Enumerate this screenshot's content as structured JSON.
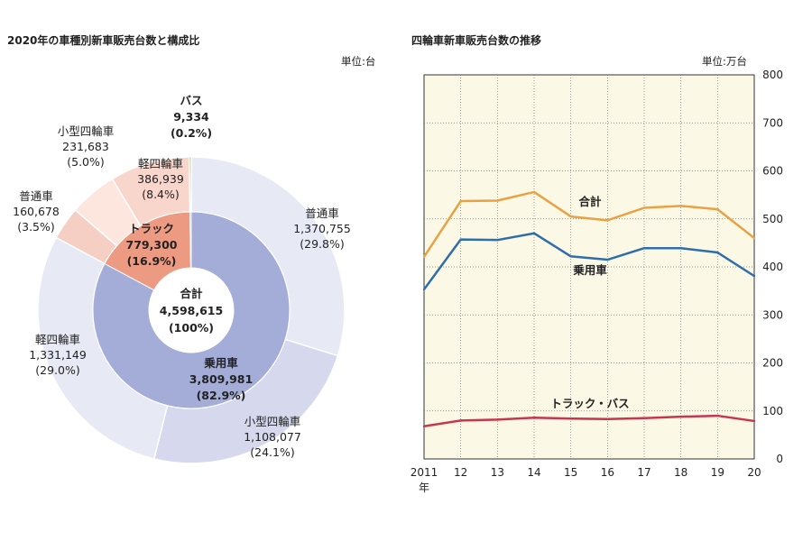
{
  "chart_data": [
    {
      "type": "pie",
      "title": "2020年の車種別新車販売台数と構成比",
      "unit": "単位:台",
      "total": {
        "name": "合計",
        "value": "4,598,615",
        "share": "(100%)"
      },
      "inner": [
        {
          "name": "乗用車",
          "value": 3809981,
          "value_label": "3,809,981",
          "share": "(82.9%)",
          "color": "#a4acd8"
        },
        {
          "name": "トラック",
          "value": 779300,
          "value_label": "779,300",
          "share": "(16.9%)",
          "color": "#ed9a82"
        },
        {
          "name": "バス",
          "value": 9334,
          "value_label": "9,334",
          "share": "(0.2%)",
          "color": "#8bbb4e"
        }
      ],
      "outer": [
        {
          "name": "普通車",
          "value": 1370755,
          "value_label": "1,370,755",
          "share": "(29.8%)",
          "color": "#e7e9f5"
        },
        {
          "name": "小型四輪車",
          "value": 1108077,
          "value_label": "1,108,077",
          "share": "(24.1%)",
          "color": "#d6d9ee"
        },
        {
          "name": "軽四輪車",
          "value": 1331149,
          "value_label": "1,331,149",
          "share": "(29.0%)",
          "color": "#e7e9f5"
        },
        {
          "name": "普通車",
          "value": 160678,
          "value_label": "160,678",
          "share": "(3.5%)",
          "color": "#f5cfc3"
        },
        {
          "name": "小型四輪車",
          "value": 231683,
          "value_label": "231,683",
          "share": "(5.0%)",
          "color": "#fce6de"
        },
        {
          "name": "軽四輪車",
          "value": 386939,
          "value_label": "386,939",
          "share": "(8.4%)",
          "color": "#f8d6cb"
        },
        {
          "name": "バス",
          "value": 9334,
          "value_label": "",
          "share": "",
          "color": "#8bbb4e"
        }
      ]
    },
    {
      "type": "line",
      "title": "四輪車新車販売台数の推移",
      "unit": "単位:万台",
      "x": [
        2011,
        2012,
        2013,
        2014,
        2015,
        2016,
        2017,
        2018,
        2019,
        2020
      ],
      "x_labels": [
        "2011",
        "12",
        "13",
        "14",
        "15",
        "16",
        "17",
        "18",
        "19",
        "20"
      ],
      "x_unit_label": "年",
      "ylim": [
        0,
        800
      ],
      "yticks": [
        "0",
        "100",
        "200",
        "300",
        "400",
        "500",
        "600",
        "700",
        "800"
      ],
      "grid": true,
      "background": "#fbf8e6",
      "series": [
        {
          "name": "合計",
          "color": "#e8a244",
          "values": [
            421,
            537,
            538,
            556,
            505,
            497,
            523,
            527,
            520,
            460
          ]
        },
        {
          "name": "乗用車",
          "color": "#2f6eaa",
          "values": [
            353,
            457,
            456,
            470,
            422,
            415,
            439,
            439,
            430,
            381
          ]
        },
        {
          "name": "トラック・バス",
          "color": "#c9354c",
          "values": [
            68,
            80,
            82,
            86,
            84,
            83,
            85,
            88,
            90,
            79
          ]
        }
      ]
    }
  ]
}
